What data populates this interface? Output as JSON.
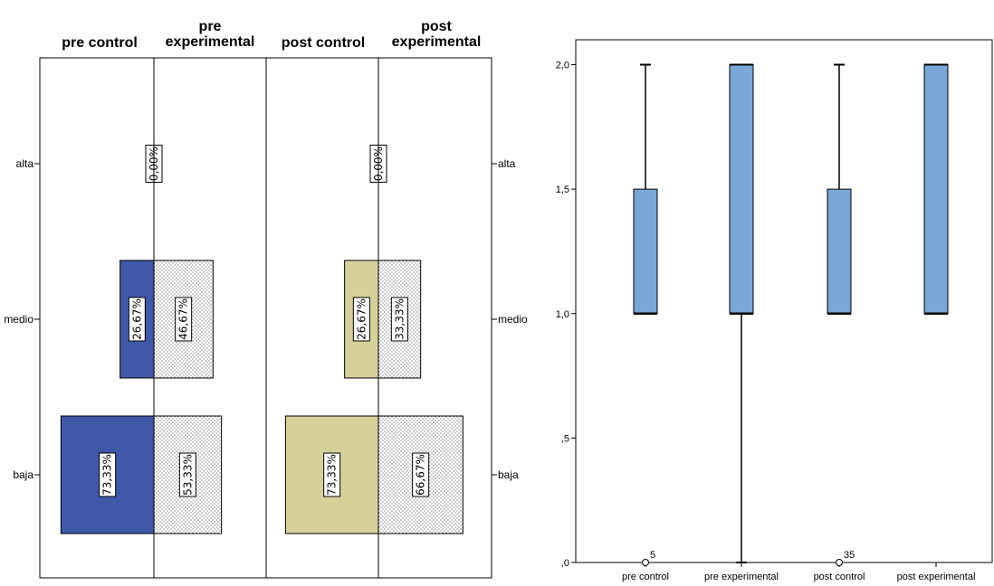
{
  "chart_data": [
    {
      "type": "bar",
      "panels": [
        {
          "name": "pre control",
          "header": [
            "pre control"
          ],
          "side": "left",
          "color": "#3f58a8"
        },
        {
          "name": "pre experimental",
          "header": [
            "pre",
            "experimental"
          ],
          "side": "right",
          "color": "dotted"
        },
        {
          "name": "post control",
          "header": [
            "post control"
          ],
          "side": "left",
          "color": "#d6d199"
        },
        {
          "name": "post experimental",
          "header": [
            "post",
            "experimental"
          ],
          "side": "right",
          "color": "dotted"
        }
      ],
      "categories": [
        "alta",
        "medio",
        "baja"
      ],
      "values": {
        "pre control": [
          0.0,
          26.67,
          73.33
        ],
        "pre experimental": [
          0.0,
          46.67,
          53.33
        ],
        "post control": [
          0.0,
          26.67,
          73.33
        ],
        "post experimental": [
          0.0,
          33.33,
          66.67
        ]
      },
      "labels": {
        "pre control": [
          "",
          "26,67%",
          "73,33%"
        ],
        "pre experimental": [
          "",
          "46,67%",
          "53,33%"
        ],
        "post control": [
          "",
          "26,67%",
          "73,33%"
        ],
        "post experimental": [
          "",
          "33,33%",
          "66,67%"
        ]
      },
      "center_labels": [
        "0,00%",
        "0,00%"
      ]
    },
    {
      "type": "box",
      "categories": [
        "pre control",
        "pre experimental",
        "post control",
        "post experimental"
      ],
      "ylim": [
        0,
        2.1
      ],
      "yticks": [
        {
          "v": 0,
          "label": ",0"
        },
        {
          "v": 0.5,
          "label": ",5"
        },
        {
          "v": 1.0,
          "label": "1,0"
        },
        {
          "v": 1.5,
          "label": "1,5"
        },
        {
          "v": 2.0,
          "label": "2,0"
        }
      ],
      "boxes": [
        {
          "min": 1.0,
          "q1": 1.0,
          "median": 1.0,
          "q3": 1.5,
          "max": 2.0,
          "outliers": [
            {
              "v": 0,
              "label": "5"
            }
          ]
        },
        {
          "min": 0.0,
          "q1": 1.0,
          "median": 1.0,
          "q3": 2.0,
          "max": 2.0,
          "outliers": []
        },
        {
          "min": 1.0,
          "q1": 1.0,
          "median": 1.0,
          "q3": 1.5,
          "max": 2.0,
          "outliers": [
            {
              "v": 0,
              "label": "35"
            }
          ]
        },
        {
          "min": 1.0,
          "q1": 1.0,
          "median": 1.0,
          "q3": 2.0,
          "max": 2.0,
          "outliers": []
        }
      ],
      "box_color": "#79a7d6"
    }
  ]
}
